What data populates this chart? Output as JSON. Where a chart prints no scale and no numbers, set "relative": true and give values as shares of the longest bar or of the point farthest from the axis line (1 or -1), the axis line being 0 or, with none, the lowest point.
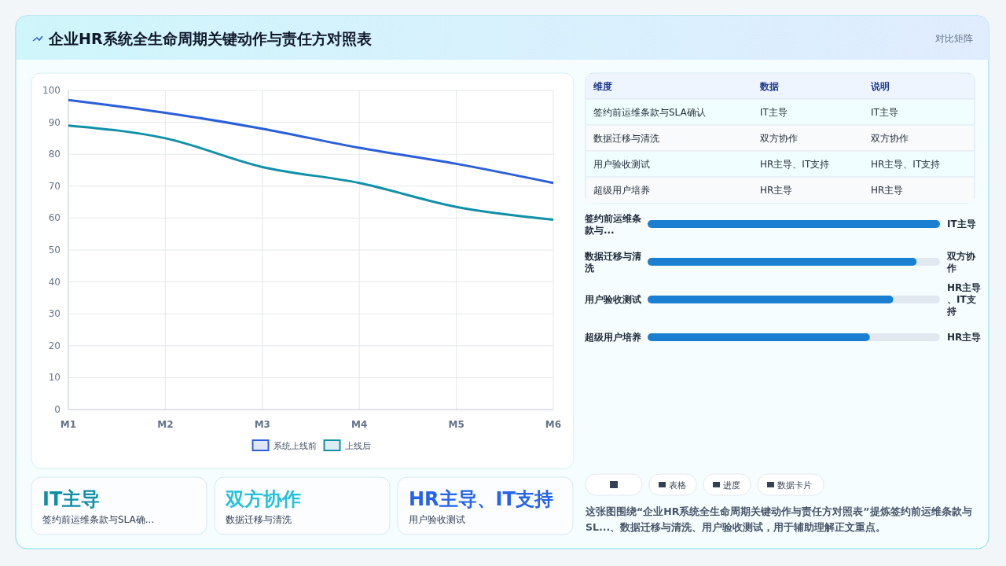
{
  "chart_data": [
    {
      "type": "other",
      "title": "企业HR系统全生命周期关键动作与责任方对照表",
      "subtitle": "对比矩阵"
    },
    {
      "type": "line",
      "categories": [
        "M1",
        "M2",
        "M3",
        "M4",
        "M5",
        "M6"
      ],
      "series": [
        {
          "name": "系统上线前",
          "color": "#2b5fd9",
          "values": [
            97,
            93,
            88,
            82,
            77,
            71
          ]
        },
        {
          "name": "上线后",
          "color": "#1190a8",
          "values": [
            89,
            85,
            76,
            71,
            63.5,
            59.5
          ]
        }
      ],
      "ylim": [
        0,
        100
      ],
      "yticks": [
        0,
        10,
        20,
        30,
        40,
        50,
        60,
        70,
        80,
        90,
        100
      ],
      "grid": true,
      "legend": "bottom"
    },
    {
      "type": "other",
      "annotations": [
        "维度",
        "数据",
        "说明",
        "签约前运维条款与SLA确认",
        "IT主导",
        "IT主导",
        "数据迁移与清洗",
        "双方协作",
        "双方协作",
        "用户验收测试",
        "HR主导、IT支持",
        "HR主导、IT支持",
        "超级用户培养",
        "HR主导",
        "HR主导"
      ]
    },
    {
      "type": "bar",
      "orientation": "horizontal",
      "relative": true,
      "categories": [
        "签约前运维条款与...",
        "数据迁移与清洗",
        "用户验收测试",
        "超级用户培养"
      ],
      "values": [
        1,
        0.92,
        0.84,
        0.76
      ],
      "color": "#1a7fd0",
      "annotations": [
        "IT主导",
        "双方协作",
        "HR主导、IT支持",
        "HR主导"
      ]
    },
    {
      "type": "other",
      "annotations": [
        "IT主导",
        "签约前运维条款与SLA确...",
        "双方协作",
        "数据迁移与清洗",
        "HR主导、IT支持",
        "用户验收测试"
      ]
    },
    {
      "type": "other",
      "annotations": [
        "表格",
        "进度",
        "数据卡片",
        "这张图围绕“企业HR系统全生命周期关键动作与责任方对照表”提炼签约前运维条款与SL...、数据迁移与清洗、用户验收测试，用于辅助理解正文重点。"
      ]
    }
  ]
}
